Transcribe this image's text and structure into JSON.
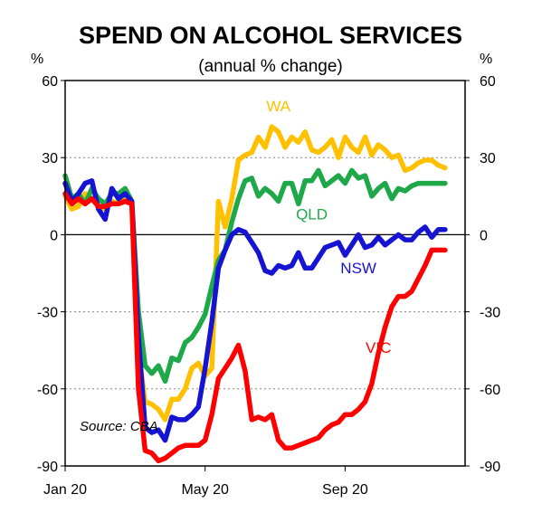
{
  "chart_data": {
    "type": "line",
    "title": "SPEND ON ALCOHOL SERVICES",
    "subtitle": "(annual % change)",
    "ylabel_left": "%",
    "ylabel_right": "%",
    "ylim": [
      -90,
      60
    ],
    "yticks": [
      60,
      30,
      0,
      -30,
      -60,
      -90
    ],
    "ytick_labels": [
      "60",
      "30",
      "0",
      "-30",
      "-60",
      "-90"
    ],
    "xlim": [
      0,
      60
    ],
    "xticks": [
      {
        "x": 0,
        "label": "Jan 20"
      },
      {
        "x": 21,
        "label": "May 20"
      },
      {
        "x": 42,
        "label": "Sep 20"
      }
    ],
    "grid": "horizontal dashed at 30 and -30 and -60",
    "source": "Source: CBA",
    "series": [
      {
        "name": "WA",
        "color": "#FFC000",
        "label_pos": [
          32,
          48
        ],
        "x": [
          0,
          1,
          2,
          3,
          4,
          5,
          6,
          7,
          8,
          9,
          10,
          11,
          12,
          13,
          14,
          15,
          16,
          17,
          18,
          19,
          20,
          21,
          22,
          23,
          24,
          25,
          26,
          27,
          28,
          29,
          30,
          31,
          32,
          33,
          34,
          35,
          36,
          37,
          38,
          39,
          40,
          41,
          42,
          43,
          44,
          45,
          46,
          47,
          48,
          49,
          50,
          51,
          52,
          53,
          54,
          55,
          56,
          57,
          58
        ],
        "values": [
          15,
          10,
          11,
          16,
          14,
          11,
          10,
          13,
          12,
          14,
          13,
          -45,
          -65,
          -66,
          -68,
          -72,
          -64,
          -64,
          -60,
          -52,
          -50,
          -55,
          -52,
          13,
          3,
          14,
          29,
          31,
          32,
          38,
          34,
          42,
          40,
          34,
          38,
          36,
          40,
          33,
          32,
          34,
          37,
          30,
          38,
          34,
          32,
          38,
          31,
          35,
          33,
          30,
          31,
          25,
          26,
          28,
          29,
          29,
          27,
          26,
          26
        ],
        "draw_to": 57
      },
      {
        "name": "QLD",
        "color": "#1FA84A",
        "label_pos": [
          37,
          6
        ],
        "x": [
          0,
          1,
          2,
          3,
          4,
          5,
          6,
          7,
          8,
          9,
          10,
          11,
          12,
          13,
          14,
          15,
          16,
          17,
          18,
          19,
          20,
          21,
          22,
          23,
          24,
          25,
          26,
          27,
          28,
          29,
          30,
          31,
          32,
          33,
          34,
          35,
          36,
          37,
          38,
          39,
          40,
          41,
          42,
          43,
          44,
          45,
          46,
          47,
          48,
          49,
          50,
          51,
          52,
          53,
          54,
          55,
          56,
          57
        ],
        "values": [
          23,
          14,
          16,
          12,
          18,
          14,
          12,
          16,
          16,
          18,
          13,
          -30,
          -51,
          -54,
          -51,
          -57,
          -48,
          -49,
          -42,
          -40,
          -36,
          -31,
          -20,
          -10,
          -6,
          5,
          14,
          21,
          22,
          15,
          18,
          16,
          13,
          20,
          20,
          12,
          21,
          21,
          25,
          19,
          21,
          23,
          20,
          25,
          22,
          23,
          15,
          18,
          20,
          14,
          18,
          17,
          19,
          20,
          20,
          20,
          20,
          20
        ]
      },
      {
        "name": "NSW",
        "color": "#1414D2",
        "label_pos": [
          44,
          -15
        ],
        "x": [
          0,
          1,
          2,
          3,
          4,
          5,
          6,
          7,
          8,
          9,
          10,
          11,
          12,
          13,
          14,
          15,
          16,
          17,
          18,
          19,
          20,
          21,
          22,
          23,
          24,
          25,
          26,
          27,
          28,
          29,
          30,
          31,
          32,
          33,
          34,
          35,
          36,
          37,
          38,
          39,
          40,
          41,
          42,
          43,
          44,
          45,
          46,
          47,
          48,
          49,
          50,
          51,
          52,
          53,
          54,
          55,
          56,
          57
        ],
        "values": [
          20,
          13,
          16,
          20,
          21,
          10,
          6,
          18,
          14,
          16,
          13,
          -40,
          -75,
          -77,
          -76,
          -80,
          -71,
          -72,
          -72,
          -70,
          -67,
          -52,
          -34,
          -13,
          -6,
          0,
          2,
          1,
          -3,
          -7,
          -14,
          -15,
          -12,
          -13,
          -12,
          -7,
          -13,
          -13,
          -9,
          -5,
          -4,
          -3,
          -8,
          -4,
          0,
          -5,
          -4,
          -1,
          -4,
          -2,
          0,
          -2,
          -2,
          1,
          3,
          -1,
          2,
          2
        ]
      },
      {
        "name": "VIC",
        "color": "#FF0000",
        "label_pos": [
          47,
          -46
        ],
        "x": [
          0,
          1,
          2,
          3,
          4,
          5,
          6,
          7,
          8,
          9,
          10,
          11,
          12,
          13,
          14,
          15,
          16,
          17,
          18,
          19,
          20,
          21,
          22,
          23,
          24,
          25,
          26,
          27,
          28,
          29,
          30,
          31,
          32,
          33,
          34,
          35,
          36,
          37,
          38,
          39,
          40,
          41,
          42,
          43,
          44,
          45,
          46,
          47,
          48,
          49,
          50,
          51,
          52,
          53,
          54,
          55,
          56,
          57
        ],
        "values": [
          16,
          12,
          14,
          12,
          14,
          11,
          11,
          12,
          12,
          13,
          12,
          -60,
          -84,
          -85,
          -88,
          -87,
          -85,
          -83,
          -82,
          -82,
          -82,
          -80,
          -70,
          -56,
          -52,
          -48,
          -43,
          -53,
          -72,
          -71,
          -72,
          -70,
          -80,
          -83,
          -83,
          -82,
          -81,
          -80,
          -79,
          -76,
          -74,
          -73,
          -70,
          -70,
          -68,
          -65,
          -58,
          -46,
          -36,
          -28,
          -24,
          -24,
          -22,
          -17,
          -12,
          -6,
          -6,
          -6
        ]
      }
    ]
  }
}
